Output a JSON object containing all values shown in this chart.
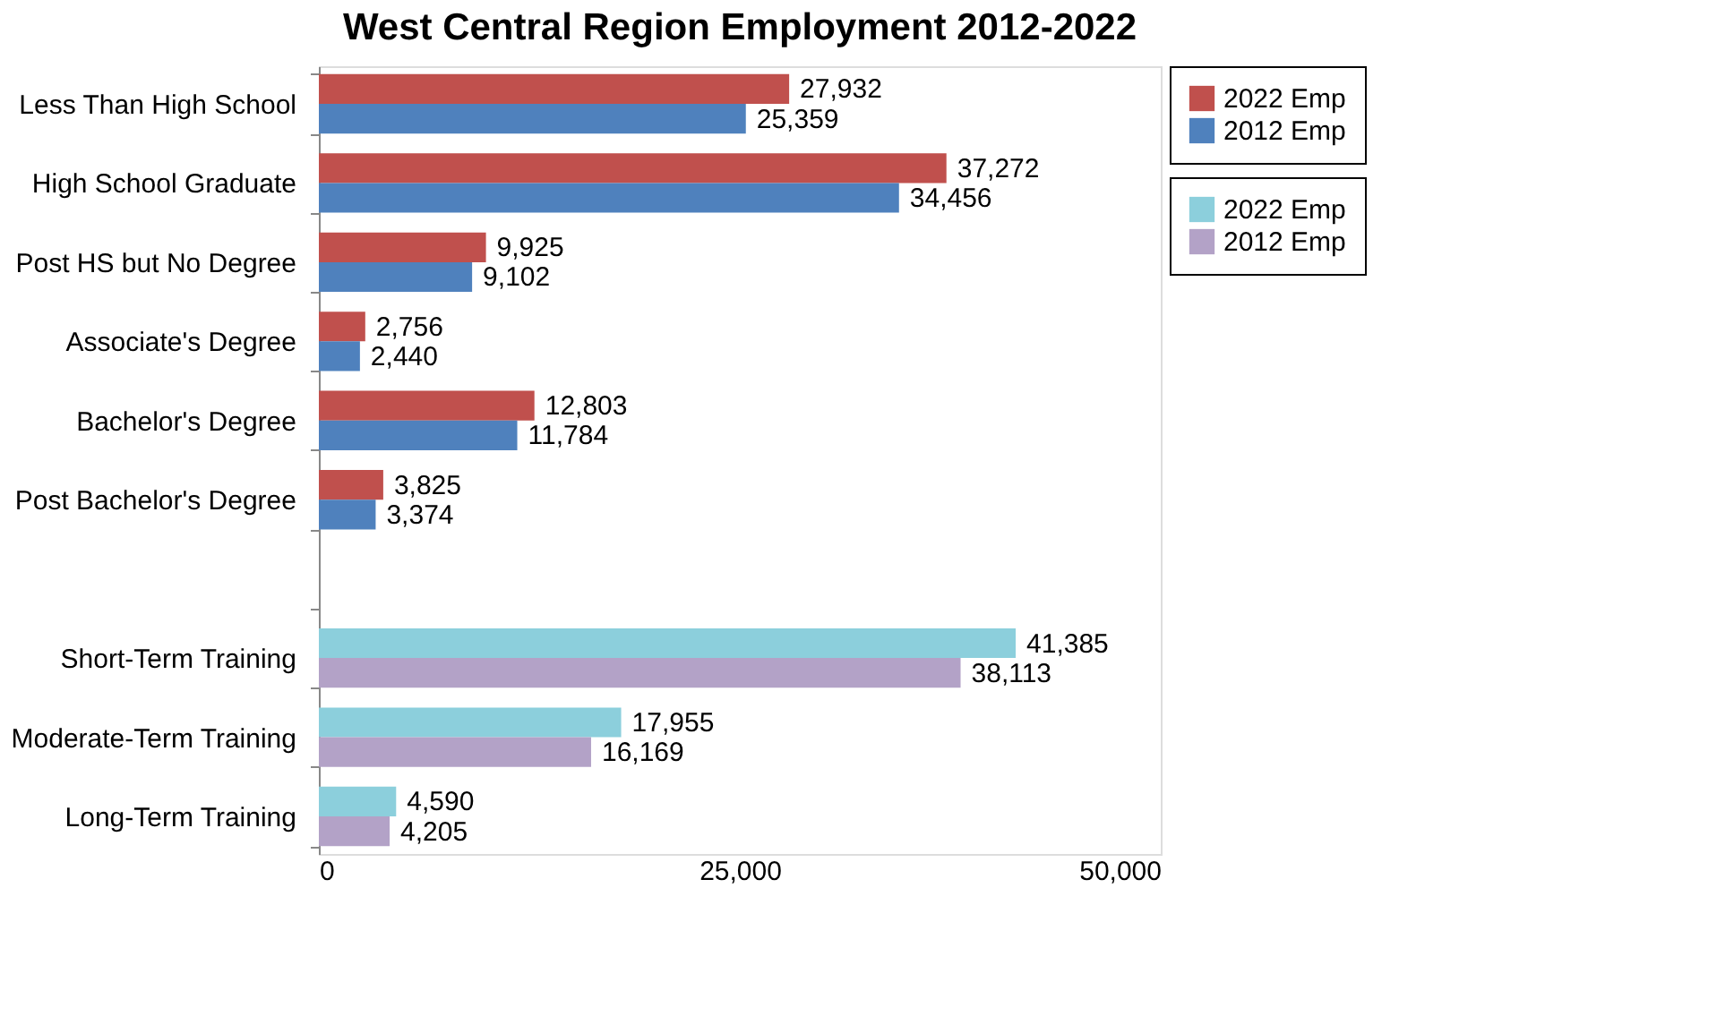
{
  "chart_data": {
    "type": "bar",
    "orientation": "horizontal",
    "title": "West Central Region Employment 2012-2022",
    "categories": [
      "Less Than High School",
      "High School Graduate",
      "Post HS but No Degree",
      "Associate's Degree",
      "Bachelor's Degree",
      "Post Bachelor's Degree",
      null,
      "Short-Term Training",
      "Moderate-Term Training",
      "Long-Term Training"
    ],
    "series": [
      {
        "name": "2022 Emp",
        "color": "#c0504d",
        "values": [
          27932,
          37272,
          9925,
          2756,
          12803,
          3825,
          null,
          null,
          null,
          null
        ],
        "value_labels": [
          "27,932",
          "37,272",
          "9,925",
          "2,756",
          "12,803",
          "3,825",
          null,
          null,
          null,
          null
        ]
      },
      {
        "name": "2012 Emp",
        "color": "#4f81bd",
        "values": [
          25359,
          34456,
          9102,
          2440,
          11784,
          3374,
          null,
          null,
          null,
          null
        ],
        "value_labels": [
          "25,359",
          "34,456",
          "9,102",
          "2,440",
          "11,784",
          "3,374",
          null,
          null,
          null,
          null
        ]
      },
      {
        "name": "2022 Emp",
        "color": "#8ccfdc",
        "values": [
          null,
          null,
          null,
          null,
          null,
          null,
          null,
          41385,
          17955,
          4590
        ],
        "value_labels": [
          null,
          null,
          null,
          null,
          null,
          null,
          null,
          "41,385",
          "17,955",
          "4,590"
        ]
      },
      {
        "name": "2012 Emp",
        "color": "#b3a2c7",
        "values": [
          null,
          null,
          null,
          null,
          null,
          null,
          null,
          38113,
          16169,
          4205
        ],
        "value_labels": [
          null,
          null,
          null,
          null,
          null,
          null,
          null,
          "38,113",
          "16,169",
          "4,205"
        ]
      }
    ],
    "xlim": [
      0,
      50000
    ],
    "xticks": [
      {
        "value": 0,
        "label": "0"
      },
      {
        "value": 25000,
        "label": "25,000"
      },
      {
        "value": 50000,
        "label": "50,000"
      }
    ],
    "grid": false,
    "legend": "right"
  }
}
